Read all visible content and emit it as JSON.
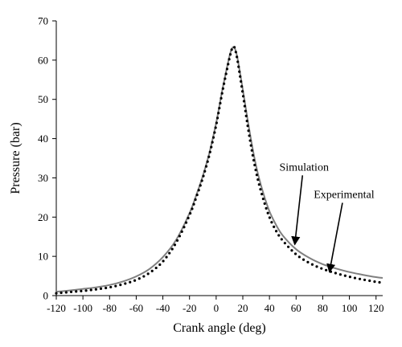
{
  "chart_data": {
    "type": "line",
    "title": "",
    "xlabel": "Crank angle (deg)",
    "ylabel": "Pressure (bar)",
    "xlim": [
      -120,
      125
    ],
    "ylim": [
      0,
      70
    ],
    "x_ticks": [
      -120,
      -100,
      -80,
      -60,
      -40,
      -20,
      0,
      20,
      40,
      60,
      80,
      100,
      120
    ],
    "y_ticks": [
      0,
      10,
      20,
      30,
      40,
      50,
      60,
      70
    ],
    "grid": false,
    "legend": "none",
    "series": [
      {
        "name": "Simulation",
        "style": "solid",
        "color": "#808080",
        "x": [
          -120,
          -110,
          -100,
          -90,
          -80,
          -70,
          -60,
          -50,
          -40,
          -30,
          -20,
          -15,
          -10,
          -5,
          0,
          5,
          10,
          12,
          13,
          14,
          16,
          20,
          25,
          30,
          35,
          40,
          45,
          50,
          60,
          70,
          80,
          90,
          100,
          110,
          120,
          125
        ],
        "y": [
          1.0,
          1.3,
          1.7,
          2.1,
          2.7,
          3.6,
          4.9,
          6.8,
          9.8,
          14.2,
          21.0,
          25.5,
          30.5,
          36.5,
          44.0,
          53.0,
          61.0,
          63.0,
          63.3,
          63.0,
          60.5,
          52.5,
          42.0,
          33.0,
          26.5,
          21.5,
          18.0,
          15.3,
          11.8,
          9.6,
          8.0,
          6.9,
          6.0,
          5.3,
          4.7,
          4.5
        ]
      },
      {
        "name": "Experimental",
        "style": "dotted",
        "color": "#000000",
        "x": [
          -120,
          -110,
          -100,
          -90,
          -80,
          -70,
          -60,
          -50,
          -40,
          -30,
          -20,
          -15,
          -10,
          -5,
          0,
          5,
          10,
          12,
          13,
          14,
          16,
          20,
          25,
          30,
          35,
          40,
          45,
          50,
          60,
          70,
          80,
          90,
          100,
          110,
          120,
          125
        ],
        "y": [
          0.6,
          0.9,
          1.2,
          1.6,
          2.1,
          2.9,
          4.0,
          5.8,
          8.7,
          13.5,
          20.5,
          25.0,
          30.0,
          36.0,
          43.5,
          52.5,
          60.5,
          63.0,
          63.4,
          63.0,
          60.0,
          51.5,
          40.5,
          31.5,
          25.0,
          20.0,
          16.5,
          14.0,
          10.5,
          8.3,
          6.8,
          5.7,
          4.8,
          4.1,
          3.5,
          3.3
        ]
      }
    ],
    "annotations": [
      {
        "text": "Simulation",
        "target_series": "Simulation",
        "arrow_to": [
          59,
          13
        ],
        "label_at": [
          66,
          29
        ]
      },
      {
        "text": "Experimental",
        "target_series": "Experimental",
        "arrow_to": [
          85,
          6
        ],
        "label_at": [
          96,
          22
        ]
      }
    ]
  }
}
